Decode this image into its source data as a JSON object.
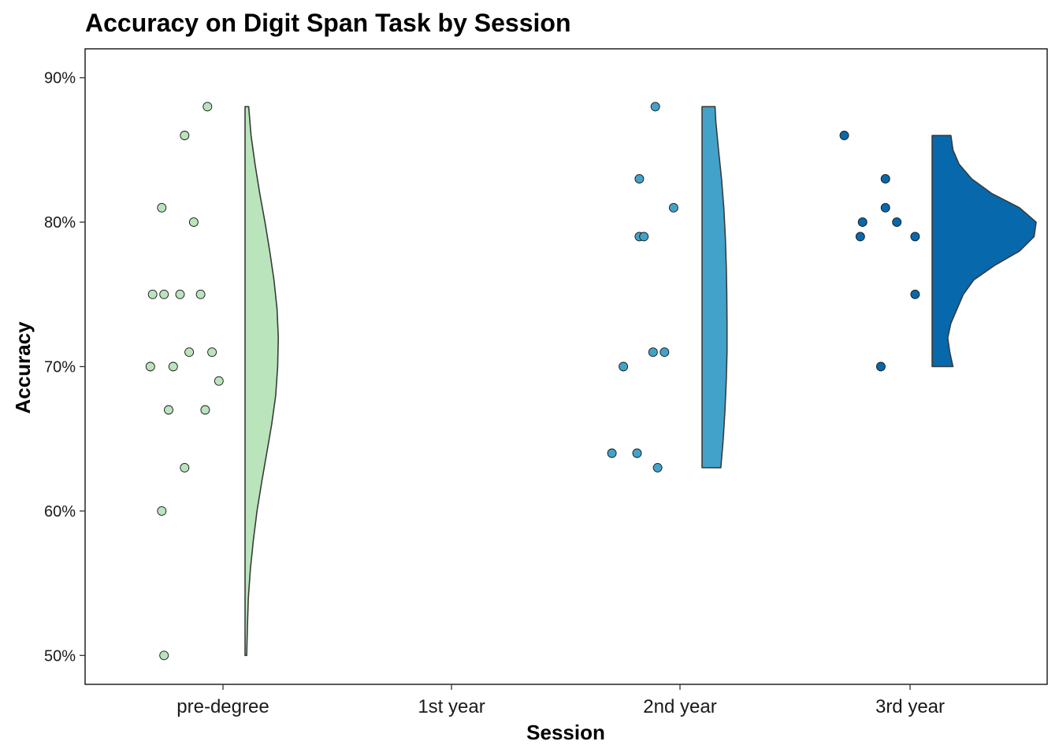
{
  "chart_data": {
    "type": "raincloud",
    "title": "Accuracy on Digit Span Task by Session",
    "xlabel": "Session",
    "ylabel": "Accuracy",
    "categories": [
      "pre-degree",
      "1st year",
      "2nd year",
      "3rd year"
    ],
    "yticks": [
      "50%",
      "60%",
      "70%",
      "80%",
      "90%"
    ],
    "ytick_values": [
      50,
      60,
      70,
      80,
      90
    ],
    "ylim": [
      48,
      92
    ],
    "grid": false,
    "legend": "none",
    "colors": {
      "pre-degree": "#BAE4BC",
      "1st year": "#7BCCC4",
      "2nd year": "#43A2CA",
      "3rd year": "#0868AC"
    },
    "series": [
      {
        "category": "pre-degree",
        "points": [
          {
            "jitter": 0.27,
            "y": 88
          },
          {
            "jitter": 0.17,
            "y": 86
          },
          {
            "jitter": 0.07,
            "y": 81
          },
          {
            "jitter": 0.21,
            "y": 80
          },
          {
            "jitter": 0.03,
            "y": 75
          },
          {
            "jitter": 0.08,
            "y": 75
          },
          {
            "jitter": 0.15,
            "y": 75
          },
          {
            "jitter": 0.24,
            "y": 75
          },
          {
            "jitter": 0.19,
            "y": 71
          },
          {
            "jitter": 0.29,
            "y": 71
          },
          {
            "jitter": 0.02,
            "y": 70
          },
          {
            "jitter": 0.12,
            "y": 70
          },
          {
            "jitter": 0.32,
            "y": 69
          },
          {
            "jitter": 0.1,
            "y": 67
          },
          {
            "jitter": 0.26,
            "y": 67
          },
          {
            "jitter": 0.17,
            "y": 63
          },
          {
            "jitter": 0.07,
            "y": 60
          },
          {
            "jitter": 0.08,
            "y": 50
          }
        ],
        "density_y": [
          50,
          52,
          54,
          56,
          58,
          60,
          62,
          64,
          66,
          68,
          70,
          72,
          74,
          76,
          78,
          80,
          82,
          84,
          86,
          88
        ],
        "density": [
          0.05,
          0.07,
          0.1,
          0.16,
          0.25,
          0.36,
          0.5,
          0.65,
          0.8,
          0.92,
          0.98,
          1.0,
          0.96,
          0.87,
          0.74,
          0.6,
          0.44,
          0.3,
          0.18,
          0.11
        ]
      },
      {
        "category": "1st year",
        "points": [],
        "density_y": [],
        "density": []
      },
      {
        "category": "2nd year",
        "points": [
          {
            "jitter": 0.23,
            "y": 88
          },
          {
            "jitter": 0.16,
            "y": 83
          },
          {
            "jitter": 0.31,
            "y": 81
          },
          {
            "jitter": 0.16,
            "y": 79
          },
          {
            "jitter": 0.18,
            "y": 79
          },
          {
            "jitter": 0.22,
            "y": 71
          },
          {
            "jitter": 0.27,
            "y": 71
          },
          {
            "jitter": 0.09,
            "y": 70
          },
          {
            "jitter": 0.04,
            "y": 64
          },
          {
            "jitter": 0.15,
            "y": 64
          },
          {
            "jitter": 0.24,
            "y": 63
          }
        ],
        "density_y": [
          63,
          65,
          67,
          69,
          71,
          73,
          75,
          77,
          79,
          81,
          83,
          85,
          87,
          88
        ],
        "density": [
          0.75,
          0.85,
          0.92,
          0.97,
          1.0,
          1.0,
          0.99,
          0.97,
          0.93,
          0.87,
          0.78,
          0.66,
          0.55,
          0.52
        ]
      },
      {
        "category": "3rd year",
        "points": [
          {
            "jitter": 0.05,
            "y": 86
          },
          {
            "jitter": 0.23,
            "y": 83
          },
          {
            "jitter": 0.13,
            "y": 80
          },
          {
            "jitter": 0.28,
            "y": 80
          },
          {
            "jitter": 0.23,
            "y": 81
          },
          {
            "jitter": 0.12,
            "y": 79
          },
          {
            "jitter": 0.36,
            "y": 79
          },
          {
            "jitter": 0.36,
            "y": 75
          },
          {
            "jitter": 0.21,
            "y": 70
          }
        ],
        "density_y": [
          70,
          71,
          72,
          73,
          74,
          75,
          76,
          77,
          78,
          79,
          80,
          81,
          82,
          83,
          84,
          85,
          86
        ],
        "density": [
          0.2,
          0.17,
          0.15,
          0.18,
          0.24,
          0.3,
          0.4,
          0.6,
          0.84,
          0.98,
          1.0,
          0.84,
          0.57,
          0.38,
          0.26,
          0.2,
          0.18
        ]
      }
    ]
  }
}
